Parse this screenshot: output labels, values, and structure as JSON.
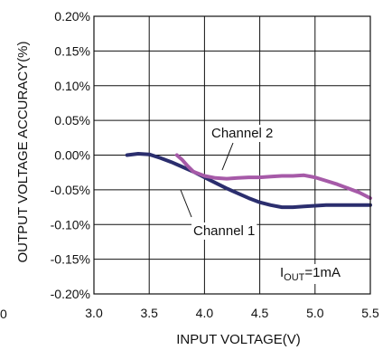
{
  "chart_data": {
    "type": "line",
    "title": "",
    "xlabel": "INPUT VOLTAGE(V)",
    "ylabel": "OUTPUT VOLTAGE ACCURACY(%)",
    "xlim": [
      3.0,
      5.5
    ],
    "ylim": [
      -0.2,
      0.2
    ],
    "x_ticks": [
      3.0,
      3.5,
      4.0,
      4.5,
      5.0,
      5.5
    ],
    "x_tick_labels": [
      "3.0",
      "3.5",
      "4.0",
      "4.5",
      "5.0",
      "5.5"
    ],
    "y_ticks": [
      0.2,
      0.15,
      0.1,
      0.05,
      0.0,
      -0.05,
      -0.1,
      -0.15,
      -0.2
    ],
    "y_tick_labels": [
      "0.20%",
      "0.15%",
      "0.10%",
      "0.05%",
      "0.00%",
      "-0.05%",
      "-0.10%",
      "-0.15%",
      "-0.20%"
    ],
    "grid": true,
    "colors": {
      "channel1": "#2b2e6e",
      "channel2": "#a65aa8",
      "grid": "#111111"
    },
    "series": [
      {
        "name": "Channel 1",
        "x": [
          3.3,
          3.4,
          3.5,
          3.6,
          3.7,
          3.8,
          3.9,
          4.0,
          4.1,
          4.2,
          4.3,
          4.4,
          4.5,
          4.6,
          4.7,
          4.8,
          4.9,
          5.0,
          5.1,
          5.2,
          5.3,
          5.4,
          5.5
        ],
        "y": [
          0.0,
          0.002,
          0.001,
          -0.004,
          -0.01,
          -0.017,
          -0.024,
          -0.032,
          -0.04,
          -0.048,
          -0.055,
          -0.062,
          -0.068,
          -0.072,
          -0.075,
          -0.075,
          -0.074,
          -0.073,
          -0.072,
          -0.072,
          -0.072,
          -0.072,
          -0.072
        ]
      },
      {
        "name": "Channel 2",
        "x": [
          3.75,
          3.8,
          3.85,
          3.9,
          4.0,
          4.1,
          4.2,
          4.3,
          4.4,
          4.5,
          4.6,
          4.7,
          4.8,
          4.9,
          5.0,
          5.1,
          5.2,
          5.3,
          5.4,
          5.5
        ],
        "y": [
          0.0,
          -0.007,
          -0.016,
          -0.024,
          -0.03,
          -0.033,
          -0.034,
          -0.033,
          -0.032,
          -0.032,
          -0.031,
          -0.03,
          -0.03,
          -0.029,
          -0.032,
          -0.037,
          -0.042,
          -0.048,
          -0.054,
          -0.062
        ]
      }
    ],
    "annotations": {
      "channel2_label": "Channel 2",
      "channel1_label": "Channel 1",
      "iout_base": "I",
      "iout_sub": "OUT",
      "iout_value": "=1mA",
      "stray_label": "0"
    }
  }
}
